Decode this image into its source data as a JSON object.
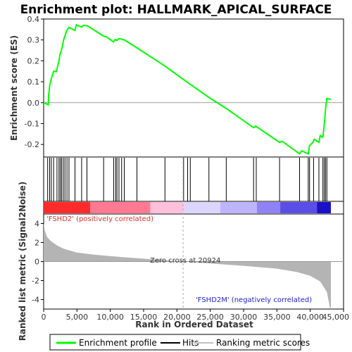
{
  "chart_data": {
    "type": "line",
    "title": "Enrichment plot: HALLMARK_APICAL_SURFACE",
    "xlabel": "Rank in Ordered Dataset",
    "ylabel_top": "Enrichment score (ES)",
    "ylabel_bottom": "Ranked list metric (Signal2Noise)",
    "xlim": [
      0,
      45000
    ],
    "x_ticks": [
      0,
      5000,
      10000,
      15000,
      20000,
      25000,
      30000,
      35000,
      40000,
      45000
    ],
    "x_tick_labels": [
      "0",
      "5,000",
      "10,000",
      "15,000",
      "20,000",
      "25,000",
      "30,000",
      "35,000",
      "40,000",
      "45,000"
    ],
    "es_ylim": [
      -0.26,
      0.4
    ],
    "es_ticks": [
      -0.2,
      -0.1,
      0.0,
      0.1,
      0.2,
      0.3,
      0.4
    ],
    "es_tick_labels": [
      "-0.2",
      "-0.1",
      "0.0",
      "0.1",
      "0.2",
      "0.3",
      "0.4"
    ],
    "metric_ylim": [
      -5,
      5
    ],
    "metric_ticks": [
      -4,
      -2,
      0,
      2,
      4
    ],
    "metric_tick_labels": [
      "-4",
      "-2",
      "0",
      "2",
      "4"
    ],
    "enrichment_profile": [
      [
        0,
        0.0
      ],
      [
        700,
        -0.01
      ],
      [
        750,
        0.035
      ],
      [
        900,
        0.08
      ],
      [
        1150,
        0.115
      ],
      [
        1500,
        0.15
      ],
      [
        1900,
        0.148
      ],
      [
        2100,
        0.175
      ],
      [
        2300,
        0.2
      ],
      [
        2450,
        0.23
      ],
      [
        2650,
        0.25
      ],
      [
        2850,
        0.275
      ],
      [
        3000,
        0.3
      ],
      [
        3250,
        0.325
      ],
      [
        3450,
        0.345
      ],
      [
        3800,
        0.36
      ],
      [
        4700,
        0.345
      ],
      [
        4900,
        0.372
      ],
      [
        5700,
        0.362
      ],
      [
        6000,
        0.37
      ],
      [
        6600,
        0.367
      ],
      [
        9000,
        0.318
      ],
      [
        9400,
        0.315
      ],
      [
        10500,
        0.29
      ],
      [
        10700,
        0.302
      ],
      [
        11000,
        0.298
      ],
      [
        11300,
        0.306
      ],
      [
        11700,
        0.304
      ],
      [
        12100,
        0.3
      ],
      [
        14000,
        0.262
      ],
      [
        18200,
        0.175
      ],
      [
        21000,
        0.11
      ],
      [
        24800,
        0.025
      ],
      [
        27400,
        -0.028
      ],
      [
        31500,
        -0.12
      ],
      [
        31800,
        -0.112
      ],
      [
        35400,
        -0.19
      ],
      [
        35800,
        -0.185
      ],
      [
        38400,
        -0.245
      ],
      [
        38700,
        -0.23
      ],
      [
        39700,
        -0.245
      ],
      [
        39900,
        -0.205
      ],
      [
        40400,
        -0.19
      ],
      [
        40600,
        -0.175
      ],
      [
        41300,
        -0.19
      ],
      [
        41500,
        -0.158
      ],
      [
        41900,
        -0.165
      ],
      [
        42050,
        -0.12
      ],
      [
        42200,
        -0.075
      ],
      [
        42300,
        -0.03
      ],
      [
        42500,
        0.02
      ],
      [
        43100,
        0.015
      ]
    ],
    "hits": [
      600,
      900,
      1150,
      1500,
      2000,
      2300,
      2500,
      2700,
      2950,
      3200,
      3500,
      3800,
      4700,
      5700,
      6500,
      9000,
      10500,
      10800,
      11000,
      11300,
      11700,
      12100,
      14000,
      18200,
      21000,
      21600,
      22000,
      24800,
      27400,
      31500,
      31900,
      35400,
      38400,
      39700,
      39900,
      40500,
      41300,
      41900,
      42100,
      42300,
      42500
    ],
    "ranked_metric": [
      [
        0,
        4.0
      ],
      [
        200,
        3.2
      ],
      [
        500,
        2.6
      ],
      [
        1000,
        2.2
      ],
      [
        2000,
        1.7
      ],
      [
        3000,
        1.35
      ],
      [
        5000,
        0.95
      ],
      [
        8000,
        0.7
      ],
      [
        12000,
        0.45
      ],
      [
        16000,
        0.25
      ],
      [
        20924,
        0.0
      ],
      [
        25000,
        -0.2
      ],
      [
        30000,
        -0.45
      ],
      [
        35000,
        -0.75
      ],
      [
        38000,
        -1.1
      ],
      [
        40000,
        -1.5
      ],
      [
        41500,
        -2.1
      ],
      [
        42500,
        -3.2
      ],
      [
        43000,
        -5.0
      ],
      [
        43100,
        -5.0
      ]
    ],
    "heatmap_colors": [
      [
        0,
        7000,
        "#ff2b2b"
      ],
      [
        7000,
        16000,
        "#ff7a90"
      ],
      [
        16000,
        21000,
        "#ffc0dc"
      ],
      [
        21000,
        26500,
        "#dcd6ff"
      ],
      [
        26500,
        32000,
        "#bcb4ff"
      ],
      [
        32000,
        35500,
        "#8e82f5"
      ],
      [
        35500,
        41000,
        "#5a4ee6"
      ],
      [
        41000,
        43100,
        "#1a10c8"
      ]
    ],
    "annotations": {
      "positive": "'FSHD2' (positively correlated)",
      "zero_cross": "Zero cross at 20924",
      "zero_cross_value": 20924,
      "negative": "'FSHD2M' (negatively correlated)"
    },
    "legend": {
      "placement": "bottom",
      "entries": [
        {
          "label": "Enrichment profile",
          "color": "#00ff00"
        },
        {
          "label": "Hits",
          "color": "#000000"
        },
        {
          "label": "Ranking metric scores",
          "color": "#c0c0c0"
        }
      ]
    },
    "colors": {
      "profile": "#00ff00",
      "metric_fill": "#b4b4b4",
      "zero_line": "#9a9a9a",
      "positive_text": "#e03030",
      "negative_text": "#2020d0"
    }
  }
}
